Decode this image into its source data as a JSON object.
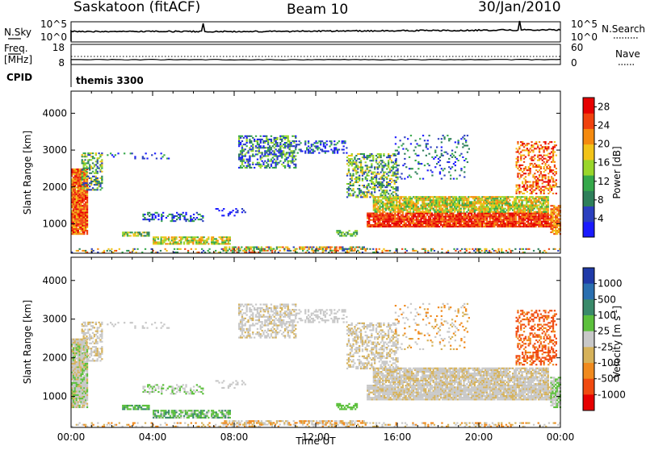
{
  "header": {
    "station": "Saskatoon (fitACF)",
    "beam": "Beam 10",
    "date": "30/Jan/2010"
  },
  "top_panel": {
    "nsky_label": "N.Sky",
    "nsky_ticks": [
      "10^5",
      "10^0"
    ],
    "nsearch_label": "N.Search",
    "nsearch_ticks": [
      "10^5",
      "10^0"
    ]
  },
  "freq_panel": {
    "freq_label": "Freq.",
    "freq_unit": "[MHz]",
    "freq_ticks": [
      "18",
      "8"
    ],
    "nave_label": "Nave",
    "nave_ticks": [
      "60",
      "0"
    ]
  },
  "cpid": {
    "label": "CPID",
    "value": "themis 3300"
  },
  "colors": {
    "power": [
      "#1a1aff",
      "#2b3fbf",
      "#2e7f5a",
      "#35a84a",
      "#9ad62a",
      "#f2c318",
      "#f58a0f",
      "#f0420e",
      "#e60000"
    ],
    "velocity": [
      "#1f3aa8",
      "#2a6fb0",
      "#3a8a6a",
      "#5cc03c",
      "#c8c8c8",
      "#d6b25a",
      "#f08a1e",
      "#f04a10",
      "#e60000"
    ],
    "gray_scatter": "#c4c4c0"
  },
  "chart_data": [
    {
      "type": "heatmap",
      "name": "power-panel",
      "x": [
        "00:00",
        "04:00",
        "08:00",
        "12:00",
        "16:00",
        "20:00",
        "00:00"
      ],
      "xlim": [
        0,
        24
      ],
      "ylabel": "Slant Range [km]",
      "yticks": [
        1000,
        2000,
        3000,
        4000
      ],
      "ylim": [
        200,
        4600
      ],
      "colorbar": {
        "label": "Power [dB]",
        "ticks": [
          4,
          8,
          12,
          16,
          20,
          24,
          28
        ],
        "range": [
          0,
          30
        ]
      }
    },
    {
      "type": "heatmap",
      "name": "velocity-panel",
      "x": [
        "00:00",
        "04:00",
        "08:00",
        "12:00",
        "16:00",
        "20:00",
        "00:00"
      ],
      "xlim": [
        0,
        24
      ],
      "xlabel": "Time UT",
      "ylabel": "Slant Range [km]",
      "yticks": [
        1000,
        2000,
        3000,
        4000
      ],
      "ylim": [
        200,
        4600
      ],
      "colorbar": {
        "label": "Velocity [m s",
        "label_sup": "-1",
        "ticks": [
          "1000",
          "500",
          "100",
          "25",
          "-25",
          "-100",
          "-500",
          "-1000"
        ]
      }
    }
  ]
}
